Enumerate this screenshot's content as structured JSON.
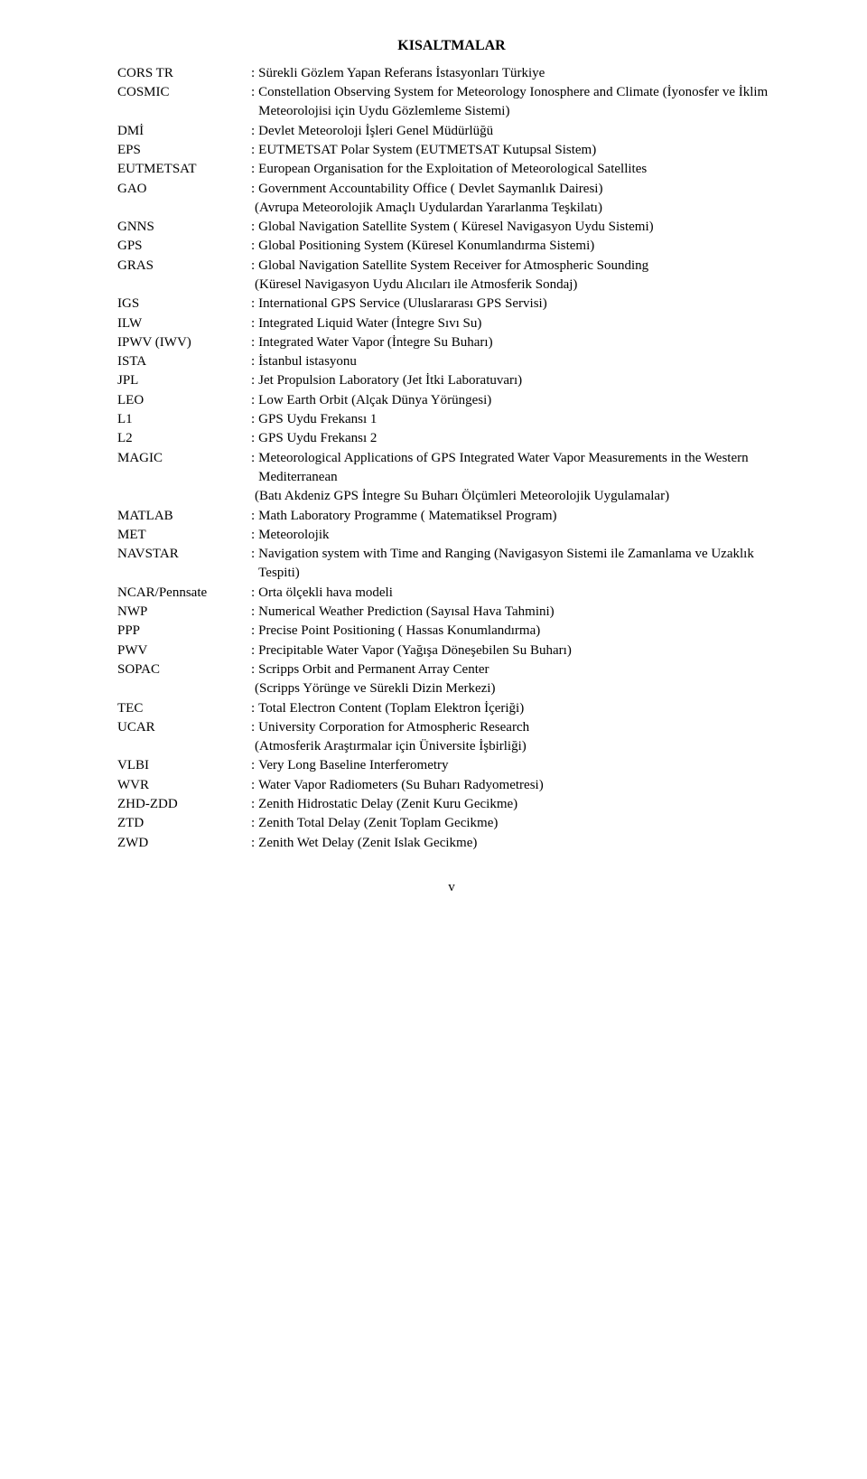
{
  "title": "KISALTMALAR",
  "pageNumber": "v",
  "entries": [
    {
      "abbr": "CORS TR",
      "colon": ":",
      "def": "Sürekli Gözlem Yapan Referans İstasyonları Türkiye"
    },
    {
      "abbr": "COSMIC",
      "colon": ":",
      "def": "Constellation Observing System for Meteorology Ionosphere and Climate (İyonosfer ve İklim Meteorolojisi için Uydu Gözlemleme Sistemi)"
    },
    {
      "abbr": "DMİ",
      "colon": ":",
      "def": "Devlet Meteoroloji İşleri Genel Müdürlüğü"
    },
    {
      "abbr": "EPS",
      "colon": ":",
      "def": "EUTMETSAT Polar System (EUTMETSAT Kutupsal Sistem)"
    },
    {
      "abbr": "EUTMETSAT",
      "colon": ":",
      "def": "European Organisation for the Exploitation of Meteorological Satellites"
    },
    {
      "abbr": "GAO",
      "colon": ":",
      "def": "Government Accountability Office ( Devlet Saymanlık Dairesi)"
    },
    {
      "abbr": "",
      "colon": "",
      "def": "(Avrupa Meteorolojik Amaçlı Uydulardan Yararlanma Teşkilatı)"
    },
    {
      "abbr": "GNNS",
      "colon": ":",
      "def": "Global Navigation Satellite System ( Küresel Navigasyon Uydu Sistemi)"
    },
    {
      "abbr": "GPS",
      "colon": ":",
      "def": "Global Positioning System (Küresel Konumlandırma Sistemi)"
    },
    {
      "abbr": "GRAS",
      "colon": ":",
      "def": "Global Navigation Satellite System Receiver for Atmospheric Sounding"
    },
    {
      "abbr": "",
      "colon": "",
      "def": "(Küresel Navigasyon Uydu Alıcıları ile Atmosferik Sondaj)"
    },
    {
      "abbr": "IGS",
      "colon": ":",
      "def": "International GPS Service (Uluslararası GPS Servisi)"
    },
    {
      "abbr": "ILW",
      "colon": ":",
      "def": "Integrated Liquid Water (İntegre Sıvı Su)"
    },
    {
      "abbr": "IPWV (IWV)",
      "colon": ":",
      "def": "Integrated Water Vapor (İntegre Su Buharı)"
    },
    {
      "abbr": "ISTA",
      "colon": ":",
      "def": "İstanbul istasyonu"
    },
    {
      "abbr": "JPL",
      "colon": ":",
      "def": "Jet Propulsion Laboratory (Jet İtki Laboratuvarı)"
    },
    {
      "abbr": "LEO",
      "colon": ": ",
      "def": "Low Earth Orbit (Alçak Dünya Yörüngesi)"
    },
    {
      "abbr": "L1",
      "colon": ":",
      "def": "GPS Uydu Frekansı 1"
    },
    {
      "abbr": "L2",
      "colon": ":",
      "def": "GPS Uydu Frekansı 2"
    },
    {
      "abbr": "MAGIC",
      "colon": ":",
      "def": "Meteorological Applications of GPS Integrated Water Vapor Measurements in the Western Mediterranean"
    },
    {
      "abbr": "",
      "colon": "",
      "def": "(Batı Akdeniz GPS İntegre Su Buharı Ölçümleri Meteorolojik Uygulamalar)"
    },
    {
      "abbr": "MATLAB",
      "colon": ":",
      "def": "Math Laboratory Programme  ( Matematiksel Program)"
    },
    {
      "abbr": "MET",
      "colon": ":",
      "def": "Meteorolojik"
    },
    {
      "abbr": "NAVSTAR",
      "colon": ":",
      "def": "Navigation system with Time and Ranging (Navigasyon Sistemi ile Zamanlama ve Uzaklık Tespiti)"
    },
    {
      "abbr": "NCAR/Pennsate",
      "colon": ":",
      "def": "Orta ölçekli hava modeli"
    },
    {
      "abbr": "NWP",
      "colon": ":",
      "def": "Numerical Weather Prediction (Sayısal Hava Tahmini)"
    },
    {
      "abbr": "PPP",
      "colon": ":",
      "def": "Precise Point Positioning ( Hassas Konumlandırma)"
    },
    {
      "abbr": "PWV",
      "colon": ":",
      "def": "Precipitable Water Vapor (Yağışa Döneşebilen Su Buharı)"
    },
    {
      "abbr": "SOPAC",
      "colon": ":",
      "def": "Scripps Orbit and Permanent Array Center"
    },
    {
      "abbr": "",
      "colon": "",
      "def": "(Scripps Yörünge ve Sürekli Dizin Merkezi)"
    },
    {
      "abbr": "TEC",
      "colon": ":",
      "def": "Total Electron Content (Toplam Elektron İçeriği)"
    },
    {
      "abbr": "UCAR",
      "colon": ": ",
      "def": " University Corporation for Atmospheric Research"
    },
    {
      "abbr": "",
      "colon": "",
      "def": "(Atmosferik Araştırmalar için Üniversite İşbirliği)"
    },
    {
      "abbr": "VLBI",
      "colon": ":",
      "def": "Very Long Baseline Interferometry"
    },
    {
      "abbr": "WVR",
      "colon": ":",
      "def": "Water Vapor Radiometers (Su Buharı Radyometresi)"
    },
    {
      "abbr": "ZHD-ZDD",
      "colon": ":",
      "def": "Zenith Hidrostatic Delay (Zenit Kuru Gecikme)"
    },
    {
      "abbr": "ZTD",
      "colon": ":",
      "def": "Zenith Total Delay (Zenit Toplam Gecikme)"
    },
    {
      "abbr": "ZWD",
      "colon": ":",
      "def": "Zenith Wet Delay (Zenit Islak Gecikme)"
    }
  ]
}
